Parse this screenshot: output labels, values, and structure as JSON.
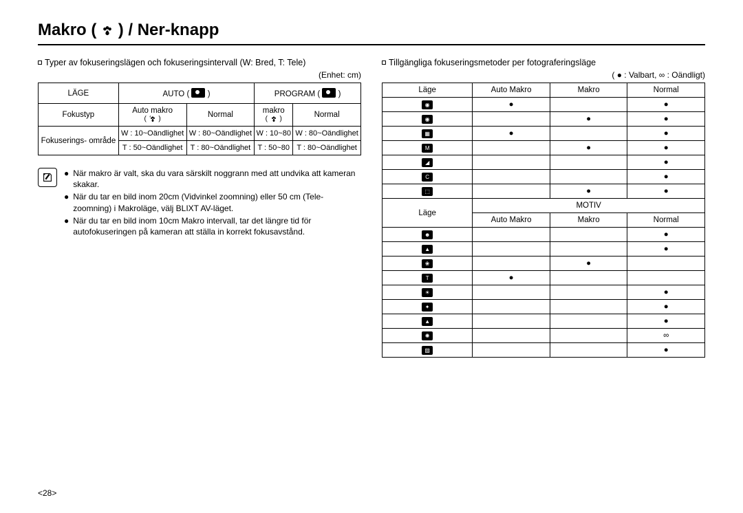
{
  "title_pre": "Makro (",
  "title_post": ") / Ner-knapp",
  "left": {
    "intro": "Typer av fokuseringslägen och fokuseringsintervall (W: Bred, T: Tele)",
    "unit": "(Enhet: cm)",
    "t1_h_mode": "LÄGE",
    "t1_h_auto": "AUTO (",
    "t1_h_auto_end": ")",
    "t1_h_prog": "PROGRAM (",
    "t1_h_prog_end": ")",
    "t1_focus": "Fokustyp",
    "t1_auto_macro": "Auto makro",
    "t1_normal1": "Normal",
    "t1_makro": "makro",
    "t1_normal2": "Normal",
    "t1_range_label": "Fokuserings- område",
    "r1c1": "W : 10~Oändlighet",
    "r1c2": "W : 80~Oändlighet",
    "r1c3": "W : 10~80",
    "r1c4": "W : 80~Oändlighet",
    "r2c1": "T : 50~Oändlighet",
    "r2c2": "T : 80~Oändlighet",
    "r2c3": "T : 50~80",
    "r2c4": "T : 80~Oändlighet",
    "note1": "När makro är valt, ska du vara särskilt noggrann med att undvika att kameran skakar.",
    "note2": "När du tar en bild inom 20cm (Vidvinkel zoomning) eller 50 cm (Tele-zoomning) i Makroläge, välj BLIXT AV-läget.",
    "note3": "När du tar en bild inom 10cm Makro intervall, tar det längre tid för autofokuseringen på kameran att ställa in korrekt fokusavstånd."
  },
  "right": {
    "intro": "Tillgängliga fokuseringsmetoder per fotograferingsläge",
    "legend": "( ● : Valbart, ∞ : Oändligt)",
    "h_mode": "Läge",
    "h_auto_macro": "Auto Makro",
    "h_macro": "Makro",
    "h_normal": "Normal",
    "motiv": "MOTIV",
    "dot": "●",
    "inf": "∞",
    "rows1": [
      {
        "auto": "●",
        "macro": "",
        "normal": "●"
      },
      {
        "auto": "",
        "macro": "●",
        "normal": "●"
      },
      {
        "auto": "●",
        "macro": "",
        "normal": "●"
      },
      {
        "auto": "",
        "macro": "●",
        "normal": "●"
      },
      {
        "auto": "",
        "macro": "",
        "normal": "●"
      },
      {
        "auto": "",
        "macro": "",
        "normal": "●"
      },
      {
        "auto": "",
        "macro": "●",
        "normal": "●"
      }
    ],
    "rows2": [
      {
        "auto": "",
        "macro": "",
        "normal": "●"
      },
      {
        "auto": "",
        "macro": "",
        "normal": "●"
      },
      {
        "auto": "",
        "macro": "●",
        "normal": ""
      },
      {
        "auto": "●",
        "macro": "",
        "normal": ""
      },
      {
        "auto": "",
        "macro": "",
        "normal": "●"
      },
      {
        "auto": "",
        "macro": "",
        "normal": "●"
      },
      {
        "auto": "",
        "macro": "",
        "normal": "●"
      },
      {
        "auto": "",
        "macro": "",
        "normal": "∞"
      },
      {
        "auto": "",
        "macro": "",
        "normal": "●"
      }
    ]
  },
  "page_num": "<28>"
}
